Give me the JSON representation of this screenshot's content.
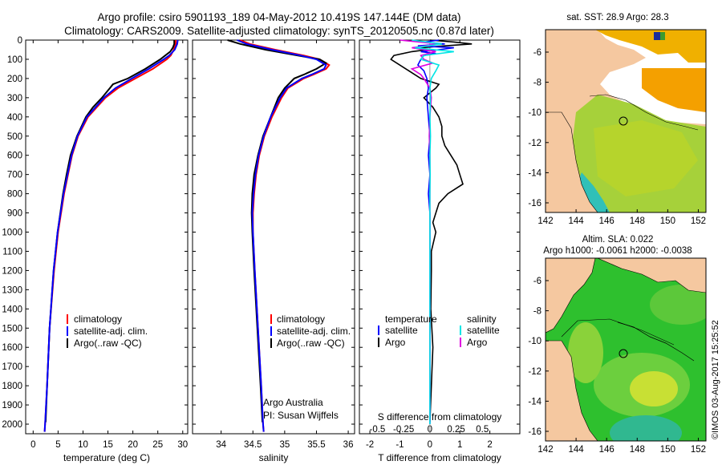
{
  "title": {
    "line1": "Argo profile: csiro 5901193_189 04-May-2012 10.419S 147.144E (DM data)",
    "line2": "Climatology: CARS2009. Satellite-adjusted climatology: synTS_20120505.nc (0.87d later)"
  },
  "depth_axis": {
    "ylim": [
      0,
      2050
    ],
    "ticks": [
      0,
      100,
      200,
      300,
      400,
      500,
      600,
      700,
      800,
      900,
      1000,
      1100,
      1200,
      1300,
      1400,
      1500,
      1600,
      1700,
      1800,
      1900,
      2000
    ]
  },
  "colors": {
    "climatology": "#ff0000",
    "satellite": "#0000ff",
    "argo": "#000000",
    "sat_sal": "#00e5e5",
    "argo_sal": "#e000e0",
    "land": "#f5c8a0"
  },
  "chart_data": [
    {
      "type": "line",
      "name": "temperature",
      "xlabel": "temperature (deg C)",
      "xlim": [
        -1.5,
        31
      ],
      "xticks": [
        "0",
        "5",
        "10",
        "15",
        "20",
        "25",
        "30"
      ],
      "xtick_values": [
        0,
        5,
        10,
        15,
        20,
        25,
        30
      ],
      "legend": [
        "climatology",
        "satellite-adj. clim.",
        "Argo(..raw -QC)"
      ],
      "series": [
        {
          "name": "climatology",
          "depth": [
            0,
            20,
            50,
            80,
            100,
            150,
            200,
            250,
            300,
            400,
            500,
            600,
            700,
            800,
            1000,
            1200,
            1500,
            1800,
            2000,
            2040
          ],
          "values": [
            28.6,
            28.6,
            28.2,
            27.6,
            26.8,
            24.0,
            20.5,
            17.0,
            14.5,
            11.0,
            9.0,
            7.8,
            7.0,
            6.2,
            5.0,
            4.2,
            3.3,
            2.8,
            2.4,
            2.3
          ]
        },
        {
          "name": "satellite-adj. clim.",
          "depth": [
            0,
            20,
            50,
            80,
            100,
            150,
            200,
            250,
            300,
            400,
            500,
            600,
            700,
            800,
            1000,
            1200,
            1500,
            1800,
            2000,
            2040
          ],
          "values": [
            29.0,
            28.9,
            28.4,
            27.3,
            26.2,
            23.2,
            19.8,
            16.5,
            14.2,
            10.8,
            8.9,
            7.7,
            6.9,
            6.1,
            4.9,
            4.1,
            3.3,
            2.8,
            2.4,
            2.3
          ]
        },
        {
          "name": "Argo(..raw -QC)",
          "depth": [
            0,
            20,
            40,
            60,
            80,
            100,
            150,
            200,
            230,
            250,
            300,
            350,
            400,
            500,
            600,
            700,
            800,
            1000,
            1200,
            1500,
            1800,
            1990
          ],
          "values": [
            28.3,
            28.3,
            28.0,
            27.5,
            26.5,
            25.5,
            22.5,
            19.0,
            16.0,
            15.4,
            13.8,
            12.0,
            10.6,
            8.8,
            7.5,
            6.7,
            6.0,
            4.9,
            4.1,
            3.3,
            2.8,
            2.5
          ]
        }
      ]
    },
    {
      "type": "line",
      "name": "salinity",
      "xlabel": "salinity",
      "xlim": [
        33.55,
        36.1
      ],
      "xticks": [
        "34",
        "34.5",
        "35",
        "35.5",
        "36"
      ],
      "xtick_values": [
        34,
        34.5,
        35,
        35.5,
        36
      ],
      "legend": [
        "climatology",
        "satellite-adj. clim.",
        "Argo(..raw -QC)"
      ],
      "annotation": [
        "Argo Australia",
        "PI: Susan Wijffels"
      ],
      "series": [
        {
          "name": "climatology",
          "depth": [
            0,
            20,
            50,
            80,
            100,
            130,
            150,
            180,
            200,
            250,
            300,
            400,
            500,
            600,
            700,
            800,
            900,
            1000,
            1200,
            1500,
            1800,
            2000,
            2040
          ],
          "values": [
            34.3,
            34.45,
            34.85,
            35.3,
            35.55,
            35.7,
            35.65,
            35.45,
            35.3,
            35.05,
            34.95,
            34.8,
            34.68,
            34.6,
            34.55,
            34.52,
            34.5,
            34.5,
            34.53,
            34.58,
            34.63,
            34.66,
            34.67
          ]
        },
        {
          "name": "satellite-adj. clim.",
          "depth": [
            0,
            20,
            50,
            80,
            100,
            130,
            150,
            180,
            200,
            250,
            300,
            400,
            500,
            600,
            700,
            800,
            900,
            1000,
            1200,
            1500,
            1800,
            2000,
            2040
          ],
          "values": [
            34.25,
            34.4,
            34.8,
            35.25,
            35.5,
            35.65,
            35.62,
            35.42,
            35.27,
            35.03,
            34.93,
            34.78,
            34.67,
            34.59,
            34.54,
            34.51,
            34.49,
            34.5,
            34.53,
            34.58,
            34.63,
            34.66,
            34.67
          ]
        },
        {
          "name": "Argo(..raw -QC)",
          "depth": [
            0,
            20,
            50,
            80,
            100,
            120,
            150,
            180,
            200,
            250,
            300,
            400,
            500,
            600,
            700,
            800,
            900,
            1000,
            1200,
            1500,
            1800,
            1990
          ],
          "values": [
            34.1,
            34.3,
            34.7,
            35.2,
            35.55,
            35.65,
            35.5,
            35.3,
            35.15,
            35.0,
            34.9,
            34.78,
            34.66,
            34.58,
            34.52,
            34.49,
            34.48,
            34.49,
            34.52,
            34.57,
            34.62,
            34.65
          ]
        }
      ]
    },
    {
      "type": "line",
      "name": "difference",
      "xlabel_top": "S difference from climatology",
      "xlabel": "T difference from climatology",
      "xlim": [
        -2.35,
        3.0
      ],
      "xticks_bottom": [
        "-2",
        "-1",
        "0",
        "1",
        "2"
      ],
      "xtick_values_bottom": [
        -2,
        -1,
        0,
        1,
        2
      ],
      "xticks_top": [
        "-0.5",
        "-0.25",
        "0",
        "0.25",
        "0.5"
      ],
      "xtick_values_top": [
        -1.75,
        -0.875,
        0,
        0.875,
        1.75
      ],
      "legend_temperature": [
        "temperature",
        "satellite",
        "Argo"
      ],
      "legend_salinity": [
        "salinity",
        "satellite",
        "Argo"
      ],
      "series": [
        {
          "name": "T satellite",
          "depth": [
            0,
            10,
            20,
            30,
            40,
            50,
            60,
            70,
            80,
            100,
            130,
            160,
            200,
            250,
            300,
            400,
            500,
            600,
            700,
            800,
            900,
            1000,
            1200,
            1500,
            1800,
            2000
          ],
          "values": [
            0.3,
            -0.2,
            0.5,
            -0.4,
            0.8,
            0.3,
            -0.3,
            0.2,
            -0.2,
            -0.3,
            -0.4,
            -0.2,
            -0.1,
            -0.05,
            -0.1,
            -0.05,
            0,
            -0.05,
            0,
            -0.05,
            0,
            0,
            0,
            0,
            0,
            0
          ]
        },
        {
          "name": "T Argo",
          "depth": [
            0,
            10,
            20,
            30,
            40,
            50,
            60,
            80,
            100,
            150,
            200,
            230,
            250,
            300,
            350,
            400,
            450,
            500,
            550,
            600,
            650,
            700,
            750,
            800,
            850,
            900,
            950,
            1000,
            1100,
            1200,
            1400,
            1600,
            1800,
            1990
          ],
          "values": [
            0,
            0.8,
            1.4,
            0.5,
            -0.3,
            -0.1,
            -0.6,
            -1.2,
            -1.3,
            -0.8,
            -0.3,
            0.3,
            0.2,
            -0.2,
            0.1,
            0.3,
            0.4,
            0.4,
            0.5,
            0.7,
            0.9,
            1.0,
            1.1,
            0.6,
            0.3,
            0.2,
            0.1,
            0.2,
            0.05,
            0.05,
            0.03,
            0.1,
            0.05,
            0
          ]
        },
        {
          "name": "S satellite",
          "depth": [
            0,
            20,
            40,
            60,
            80,
            100,
            130,
            160,
            200,
            250,
            300,
            400,
            500,
            600,
            700,
            800,
            1000,
            1200,
            1500,
            1800,
            2000
          ],
          "values": [
            -0.6,
            0.4,
            -0.5,
            0.8,
            -0.2,
            -0.3,
            0.3,
            0.2,
            0.05,
            0.0,
            0.02,
            0.0,
            0.02,
            0.0,
            0.01,
            0.0,
            0.0,
            0.0,
            0.0,
            0.0,
            0.0
          ]
        },
        {
          "name": "S Argo",
          "depth": [
            0,
            20,
            40,
            60,
            80,
            100,
            120,
            150,
            180,
            200,
            250,
            300,
            400,
            500,
            600,
            700,
            800,
            1000,
            1200,
            1500,
            1800,
            1990
          ],
          "values": [
            -1.0,
            0.3,
            -0.6,
            0.2,
            -0.3,
            -0.2,
            0.1,
            -0.6,
            -0.3,
            -0.2,
            0.0,
            0.05,
            0.0,
            -0.02,
            0.0,
            0.0,
            0.0,
            0.0,
            0.0,
            0.0,
            0.0,
            0.0
          ]
        }
      ]
    }
  ],
  "maps": {
    "sst": {
      "title": "sat. SST: 28.9 Argo: 28.3",
      "xticks": [
        "142",
        "144",
        "146",
        "148",
        "150",
        "152"
      ],
      "yticks": [
        "-6",
        "-8",
        "-10",
        "-12",
        "-14",
        "-16"
      ]
    },
    "sla": {
      "title1": "Altim. SLA: 0.022",
      "title2": "Argo h1000: -0.0061 h2000: -0.0038",
      "xticks": [
        "142",
        "144",
        "146",
        "148",
        "150",
        "152"
      ],
      "yticks": [
        "-6",
        "-8",
        "-10",
        "-12",
        "-14",
        "-16"
      ]
    }
  },
  "credit": "©IMOS 03-Aug-2017 15:25:52"
}
